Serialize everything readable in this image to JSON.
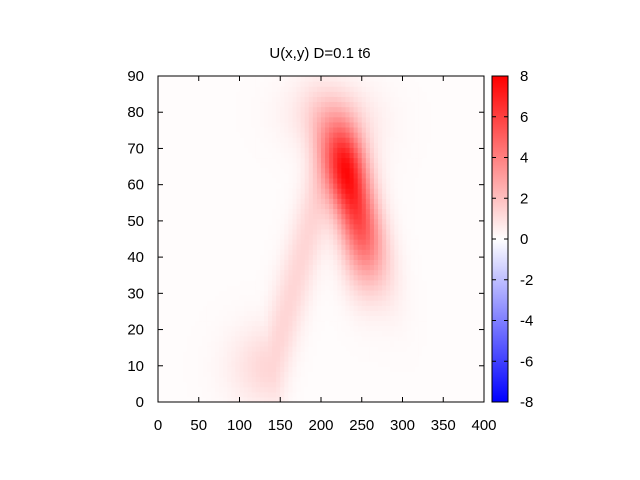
{
  "chart_data": {
    "type": "heatmap",
    "title": "U(x,y) D=0.1 t6",
    "xlabel": "",
    "ylabel": "",
    "xlim": [
      0,
      400
    ],
    "ylim": [
      0,
      90
    ],
    "x_ticks": [
      0,
      50,
      100,
      150,
      200,
      250,
      300,
      350,
      400
    ],
    "y_ticks": [
      0,
      10,
      20,
      30,
      40,
      50,
      60,
      70,
      80,
      90
    ],
    "colorbar": {
      "range": [
        -8,
        8
      ],
      "ticks": [
        8,
        6,
        4,
        2,
        0,
        -2,
        -4,
        -6,
        -8
      ],
      "colors": {
        "min": "#0000ff",
        "mid": "#ffffff",
        "max": "#ff0000"
      }
    },
    "background_value": 0.1,
    "features": [
      {
        "kind": "blob",
        "cx": 240,
        "cy": 55,
        "sx": 18,
        "sy": 14,
        "rot": 0.35,
        "peak": 5.2
      },
      {
        "kind": "blob",
        "cx": 233,
        "cy": 68,
        "sx": 16,
        "sy": 8,
        "rot": 0.2,
        "peak": 3.0
      },
      {
        "kind": "blob",
        "cx": 215,
        "cy": 79,
        "sx": 40,
        "sy": 7,
        "rot": -0.1,
        "peak": 1.0
      },
      {
        "kind": "blob",
        "cx": 245,
        "cy": 40,
        "sx": 16,
        "sy": 9,
        "rot": 0.1,
        "peak": 1.3
      },
      {
        "kind": "ridge",
        "x1": 140,
        "y1": 10,
        "x2": 205,
        "y2": 64,
        "width": 8,
        "peak": 1.2
      }
    ]
  }
}
